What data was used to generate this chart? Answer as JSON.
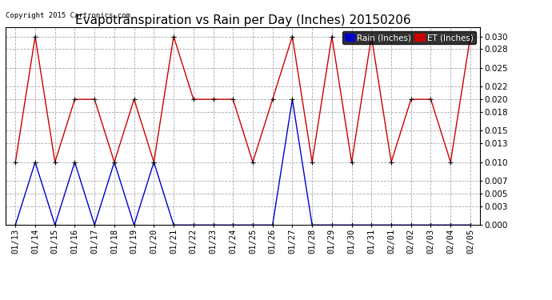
{
  "title": "Evapotranspiration vs Rain per Day (Inches) 20150206",
  "copyright_text": "Copyright 2015 Cartronics.com",
  "legend_labels": [
    "Rain (Inches)",
    "ET (Inches)"
  ],
  "dates": [
    "01/13",
    "01/14",
    "01/15",
    "01/16",
    "01/17",
    "01/18",
    "01/19",
    "01/20",
    "01/21",
    "01/22",
    "01/23",
    "01/24",
    "01/25",
    "01/26",
    "01/27",
    "01/28",
    "01/29",
    "01/30",
    "01/31",
    "02/01",
    "02/02",
    "02/03",
    "02/04",
    "02/05"
  ],
  "et_values": [
    0.01,
    0.03,
    0.01,
    0.02,
    0.02,
    0.01,
    0.02,
    0.01,
    0.03,
    0.02,
    0.02,
    0.02,
    0.01,
    0.02,
    0.03,
    0.01,
    0.03,
    0.01,
    0.03,
    0.01,
    0.02,
    0.02,
    0.01,
    0.03
  ],
  "rain_values": [
    0.0,
    0.01,
    0.0,
    0.01,
    0.0,
    0.01,
    0.0,
    0.01,
    0.0,
    0.0,
    0.0,
    0.0,
    0.0,
    0.0,
    0.02,
    0.0,
    0.0,
    0.0,
    0.0,
    0.0,
    0.0,
    0.0,
    0.0,
    0.0
  ],
  "et_color": "#cc0000",
  "rain_color": "#0000cc",
  "bg_color": "#ffffff",
  "grid_color": "#aaaaaa",
  "yticks": [
    0.0,
    0.003,
    0.005,
    0.007,
    0.01,
    0.013,
    0.015,
    0.018,
    0.02,
    0.022,
    0.025,
    0.028,
    0.03
  ],
  "ylim": [
    0.0,
    0.0315
  ],
  "title_fontsize": 11,
  "tick_fontsize": 7.5,
  "copyright_fontsize": 6.5
}
